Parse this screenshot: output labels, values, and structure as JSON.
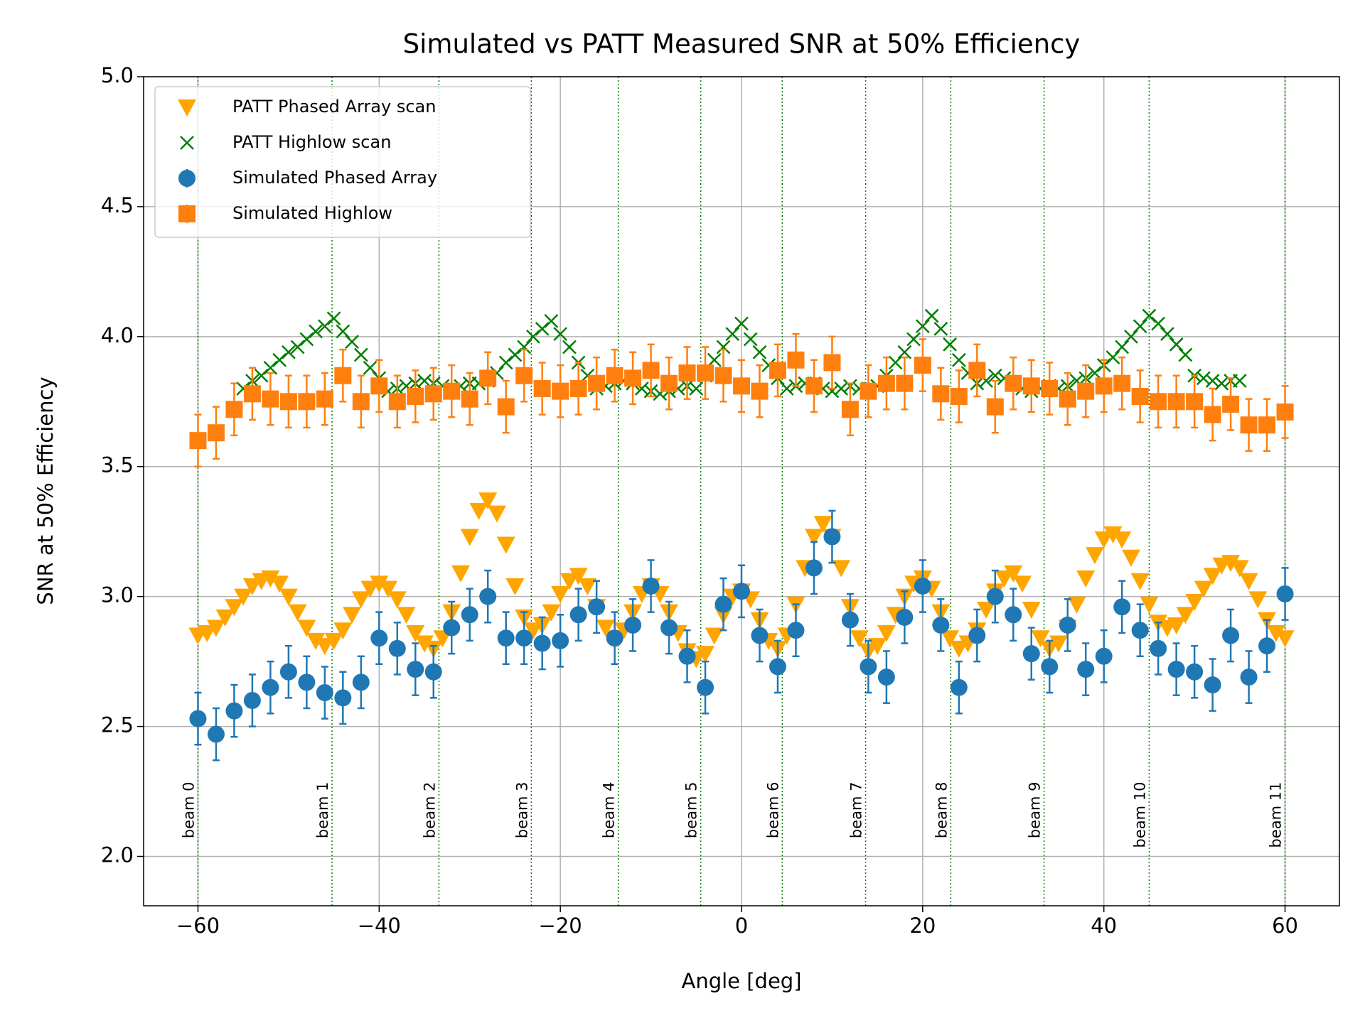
{
  "chart_data": {
    "type": "scatter",
    "title": "Simulated vs PATT Measured SNR at 50% Efficiency",
    "xlabel": "Angle [deg]",
    "ylabel": "SNR at 50% Efficiency",
    "xlim": [
      -66,
      66
    ],
    "ylim": [
      1.81,
      5.0
    ],
    "xticks": [
      {
        "value": -60,
        "label": "−60"
      },
      {
        "value": -40,
        "label": "−40"
      },
      {
        "value": -20,
        "label": "−20"
      },
      0,
      20,
      40,
      60
    ],
    "yticks": [
      {
        "value": 2,
        "label": "2.0"
      },
      2.5,
      {
        "value": 3,
        "label": "3.0"
      },
      3.5,
      {
        "value": 4,
        "label": "4.0"
      },
      4.5,
      {
        "value": 5,
        "label": "5.0"
      }
    ],
    "grid": true,
    "legend": "upper left",
    "beams": {
      "color": "#008000",
      "x": [
        -60,
        -45.2,
        -33.4,
        -23.2,
        -13.6,
        -4.5,
        4.5,
        13.7,
        23.1,
        33.4,
        45.0,
        60
      ],
      "labels": [
        "beam 0",
        "beam 1",
        "beam 2",
        "beam 3",
        "beam 4",
        "beam 5",
        "beam 6",
        "beam 7",
        "beam 8",
        "beam 9",
        "beam 10",
        "beam 11"
      ]
    },
    "series": [
      {
        "name": "PATT Phased Array scan",
        "color": "#ffa500",
        "marker": "v",
        "x": [
          -60,
          -59,
          -58,
          -57,
          -56,
          -55,
          -54,
          -53,
          -52,
          -51,
          -50,
          -49,
          -48,
          -47,
          -46,
          -45,
          -44,
          -43,
          -42,
          -41,
          -40,
          -39,
          -38,
          -37,
          -36,
          -35,
          -34,
          -33,
          -32,
          -31,
          -30,
          -29,
          -28,
          -27,
          -26,
          -25,
          -24,
          -23,
          -22,
          -21,
          -20,
          -19,
          -18,
          -17,
          -16,
          -15,
          -14,
          -13,
          -12,
          -11,
          -10,
          -9,
          -8,
          -7,
          -6,
          -5,
          -4,
          -3,
          -2,
          -1,
          0,
          1,
          2,
          3,
          4,
          5,
          6,
          7,
          8,
          9,
          10,
          11,
          12,
          13,
          14,
          15,
          16,
          17,
          18,
          19,
          20,
          21,
          22,
          23,
          24,
          25,
          26,
          27,
          28,
          29,
          30,
          31,
          32,
          33,
          34,
          35,
          36,
          37,
          38,
          39,
          40,
          41,
          42,
          43,
          44,
          45,
          46,
          47,
          48,
          49,
          50,
          51,
          52,
          53,
          54,
          55,
          56,
          57,
          58,
          59,
          60
        ],
        "values": [
          2.85,
          2.86,
          2.88,
          2.92,
          2.96,
          3.0,
          3.04,
          3.06,
          3.07,
          3.05,
          3.0,
          2.94,
          2.88,
          2.83,
          2.81,
          2.83,
          2.87,
          2.93,
          2.99,
          3.03,
          3.05,
          3.03,
          2.99,
          2.93,
          2.86,
          2.82,
          2.8,
          2.84,
          2.94,
          3.09,
          3.23,
          3.33,
          3.37,
          3.32,
          3.2,
          3.04,
          2.92,
          2.87,
          2.89,
          2.94,
          3.01,
          3.06,
          3.08,
          3.04,
          2.96,
          2.88,
          2.84,
          2.87,
          2.94,
          3.01,
          3.04,
          3.01,
          2.94,
          2.86,
          2.79,
          2.76,
          2.78,
          2.85,
          2.93,
          3.0,
          3.02,
          2.99,
          2.91,
          2.83,
          2.8,
          2.85,
          2.97,
          3.11,
          3.23,
          3.28,
          3.23,
          3.11,
          2.96,
          2.84,
          2.79,
          2.81,
          2.86,
          2.93,
          3.0,
          3.05,
          3.07,
          3.03,
          2.94,
          2.84,
          2.8,
          2.82,
          2.87,
          2.95,
          3.02,
          3.07,
          3.09,
          3.05,
          2.95,
          2.84,
          2.8,
          2.82,
          2.88,
          2.97,
          3.07,
          3.16,
          3.22,
          3.24,
          3.22,
          3.15,
          3.06,
          2.97,
          2.9,
          2.88,
          2.89,
          2.93,
          2.98,
          3.03,
          3.08,
          3.12,
          3.13,
          3.11,
          3.06,
          2.99,
          2.91,
          2.86,
          2.84
        ]
      },
      {
        "name": "PATT Highlow scan",
        "color": "#008000",
        "marker": "x",
        "x": [
          -55,
          -54,
          -53,
          -52,
          -51,
          -50,
          -49,
          -48,
          -47,
          -46,
          -45,
          -44,
          -43,
          -42,
          -41,
          -40,
          -39,
          -38,
          -37,
          -36,
          -35,
          -34,
          -33,
          -32,
          -31,
          -30,
          -29,
          -28,
          -27,
          -26,
          -25,
          -24,
          -23,
          -22,
          -21,
          -20,
          -19,
          -18,
          -17,
          -16,
          -15,
          -14,
          -13,
          -12,
          -11,
          -10,
          -9,
          -8,
          -7,
          -6,
          -5,
          -4,
          -3,
          -2,
          -1,
          0,
          1,
          2,
          3,
          4,
          5,
          6,
          7,
          8,
          9,
          10,
          11,
          12,
          13,
          14,
          15,
          16,
          17,
          18,
          19,
          20,
          21,
          22,
          23,
          24,
          25,
          26,
          27,
          28,
          29,
          30,
          31,
          32,
          33,
          34,
          35,
          36,
          37,
          38,
          39,
          40,
          41,
          42,
          43,
          44,
          45,
          46,
          47,
          48,
          49,
          50,
          51,
          52,
          53,
          54,
          55
        ],
        "values": [
          3.8,
          3.83,
          3.85,
          3.88,
          3.91,
          3.94,
          3.96,
          3.99,
          4.02,
          4.04,
          4.07,
          4.02,
          3.98,
          3.93,
          3.88,
          3.84,
          3.79,
          3.8,
          3.81,
          3.82,
          3.83,
          3.82,
          3.81,
          3.8,
          3.81,
          3.82,
          3.82,
          3.83,
          3.86,
          3.9,
          3.93,
          3.96,
          4.0,
          4.03,
          4.06,
          4.01,
          3.96,
          3.9,
          3.85,
          3.8,
          3.81,
          3.82,
          3.83,
          3.82,
          3.8,
          3.79,
          3.78,
          3.79,
          3.8,
          3.81,
          3.8,
          3.85,
          3.91,
          3.96,
          4.01,
          4.05,
          3.99,
          3.94,
          3.89,
          3.84,
          3.8,
          3.81,
          3.82,
          3.82,
          3.8,
          3.79,
          3.8,
          3.81,
          3.8,
          3.8,
          3.81,
          3.85,
          3.9,
          3.94,
          3.99,
          4.04,
          4.08,
          4.03,
          3.97,
          3.91,
          3.86,
          3.82,
          3.83,
          3.85,
          3.84,
          3.82,
          3.8,
          3.79,
          3.8,
          3.81,
          3.8,
          3.81,
          3.83,
          3.84,
          3.86,
          3.89,
          3.92,
          3.96,
          4.0,
          4.04,
          4.08,
          4.05,
          4.01,
          3.97,
          3.93,
          3.85,
          3.84,
          3.83,
          3.82,
          3.83,
          3.83
        ]
      },
      {
        "name": "Simulated Phased Array",
        "color": "#1f77b4",
        "marker": "o",
        "error": 0.1,
        "x": [
          -60,
          -58,
          -56,
          -54,
          -52,
          -50,
          -48,
          -46,
          -44,
          -42,
          -40,
          -38,
          -36,
          -34,
          -32,
          -30,
          -28,
          -26,
          -24,
          -22,
          -20,
          -18,
          -16,
          -14,
          -12,
          -10,
          -8,
          -6,
          -4,
          -2,
          0,
          2,
          4,
          6,
          8,
          10,
          12,
          14,
          16,
          18,
          20,
          22,
          24,
          26,
          28,
          30,
          32,
          34,
          36,
          38,
          40,
          42,
          44,
          46,
          48,
          50,
          52,
          54,
          56,
          58,
          60
        ],
        "values": [
          2.53,
          2.47,
          2.56,
          2.6,
          2.65,
          2.71,
          2.67,
          2.63,
          2.61,
          2.67,
          2.84,
          2.8,
          2.72,
          2.71,
          2.88,
          2.93,
          3.0,
          2.84,
          2.84,
          2.82,
          2.83,
          2.93,
          2.96,
          2.84,
          2.89,
          3.04,
          2.88,
          2.77,
          2.65,
          2.97,
          3.02,
          2.85,
          2.73,
          2.87,
          3.11,
          3.23,
          2.91,
          2.73,
          2.69,
          2.92,
          3.04,
          2.89,
          2.65,
          2.85,
          3.0,
          2.93,
          2.78,
          2.73,
          2.89,
          2.72,
          2.77,
          2.96,
          2.87,
          2.8,
          2.72,
          2.71,
          2.66,
          2.85,
          2.69,
          2.81,
          3.01
        ]
      },
      {
        "name": "Simulated Highlow",
        "color": "#ff7f0e",
        "marker": "s",
        "error": 0.1,
        "x": [
          -60,
          -58,
          -56,
          -54,
          -52,
          -50,
          -48,
          -46,
          -44,
          -42,
          -40,
          -38,
          -36,
          -34,
          -32,
          -30,
          -28,
          -26,
          -24,
          -22,
          -20,
          -18,
          -16,
          -14,
          -12,
          -10,
          -8,
          -6,
          -4,
          -2,
          0,
          2,
          4,
          6,
          8,
          10,
          12,
          14,
          16,
          18,
          20,
          22,
          24,
          26,
          28,
          30,
          32,
          34,
          36,
          38,
          40,
          42,
          44,
          46,
          48,
          50,
          52,
          54,
          56,
          58,
          60
        ],
        "values": [
          3.6,
          3.63,
          3.72,
          3.78,
          3.76,
          3.75,
          3.75,
          3.76,
          3.85,
          3.75,
          3.81,
          3.75,
          3.77,
          3.78,
          3.79,
          3.76,
          3.84,
          3.73,
          3.85,
          3.8,
          3.79,
          3.8,
          3.82,
          3.85,
          3.84,
          3.87,
          3.82,
          3.86,
          3.86,
          3.85,
          3.81,
          3.79,
          3.87,
          3.91,
          3.81,
          3.9,
          3.72,
          3.79,
          3.82,
          3.82,
          3.89,
          3.78,
          3.77,
          3.87,
          3.73,
          3.82,
          3.81,
          3.8,
          3.76,
          3.79,
          3.81,
          3.82,
          3.77,
          3.75,
          3.75,
          3.75,
          3.7,
          3.74,
          3.66,
          3.66,
          3.71
        ]
      }
    ]
  }
}
